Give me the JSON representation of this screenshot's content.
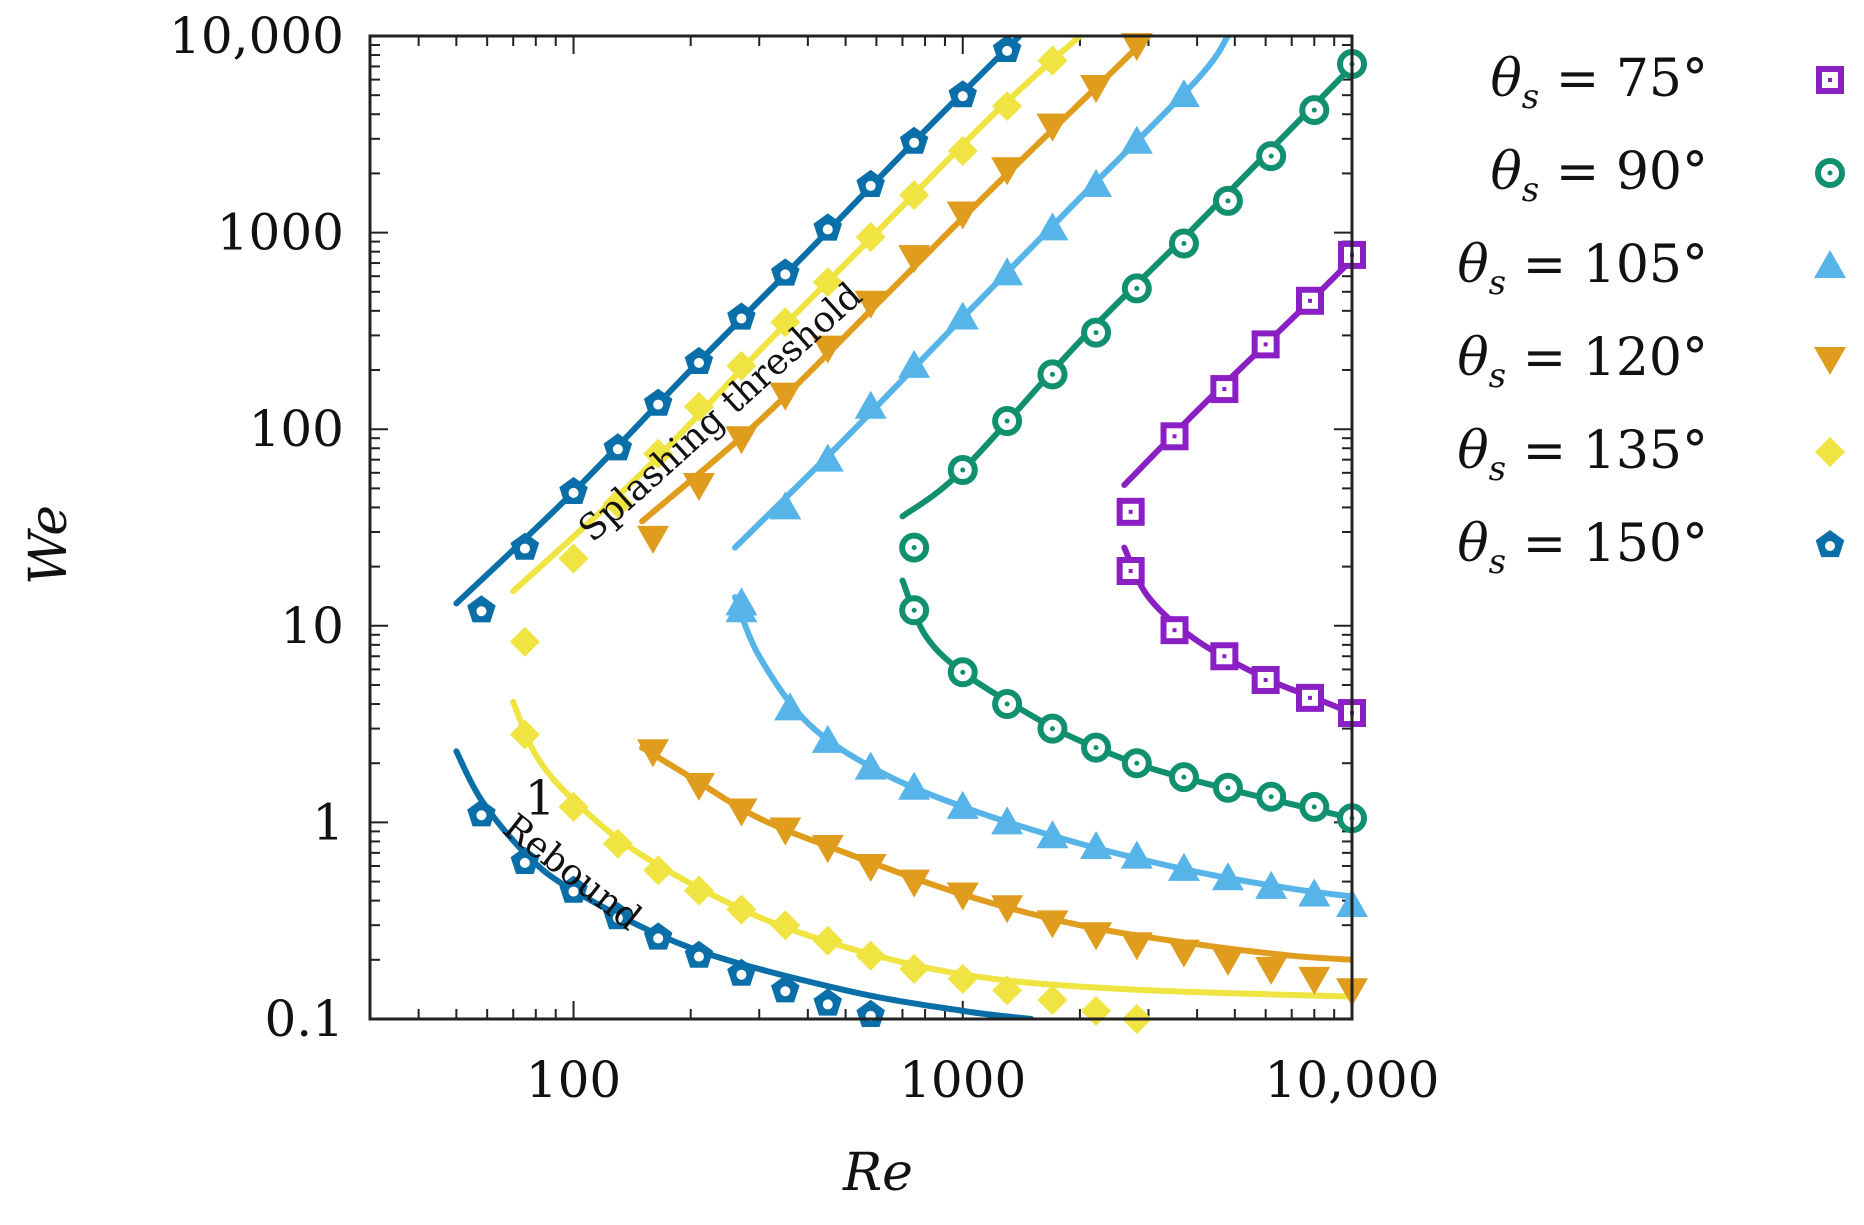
{
  "chart_data": {
    "type": "scatter",
    "title": "",
    "xlabel": "Re",
    "ylabel": "We",
    "xscale": "log",
    "yscale": "log",
    "xlim": [
      30,
      10000
    ],
    "ylim": [
      0.1,
      10000
    ],
    "grid": false,
    "legend_position": "right",
    "x_ticks": [
      {
        "value": 100,
        "label": "100"
      },
      {
        "value": 1000,
        "label": "1000"
      },
      {
        "value": 10000,
        "label": "10,000"
      }
    ],
    "y_ticks": [
      {
        "value": 0.1,
        "label": "0.1"
      },
      {
        "value": 1,
        "label": "1"
      },
      {
        "value": 10,
        "label": "10"
      },
      {
        "value": 100,
        "label": "100"
      },
      {
        "value": 1000,
        "label": "1000"
      },
      {
        "value": 10000,
        "label": "10,000"
      }
    ],
    "annotations": [
      {
        "text": "Splashing threshold",
        "x": 250,
        "y": 110,
        "rotation_deg": -42
      },
      {
        "text": "Rebound",
        "x": 95,
        "y": 0.5,
        "rotation_deg": 38
      },
      {
        "text": "1",
        "x": 82,
        "y": 1.1,
        "rotation_deg": 0
      }
    ],
    "series": [
      {
        "name": "θs = 75°",
        "legend_theta": "75",
        "color": "#8a1fc4",
        "marker": "square",
        "points_upper": [
          [
            2700,
            38
          ],
          [
            3500,
            92
          ],
          [
            4700,
            160
          ],
          [
            6000,
            270
          ],
          [
            7800,
            450
          ],
          [
            10000,
            770
          ]
        ],
        "points_lower": [
          [
            2700,
            19
          ],
          [
            3500,
            9.5
          ],
          [
            4700,
            7
          ],
          [
            6000,
            5.3
          ],
          [
            7800,
            4.3
          ],
          [
            10000,
            3.6
          ]
        ],
        "fit_upper": [
          [
            2600,
            52
          ],
          [
            4000,
            124
          ],
          [
            6000,
            270
          ],
          [
            8000,
            470
          ],
          [
            10000,
            730
          ]
        ],
        "fit_lower": [
          [
            2600,
            25
          ],
          [
            3000,
            14
          ],
          [
            4000,
            8.4
          ],
          [
            6000,
            5.4
          ],
          [
            8000,
            4.3
          ],
          [
            10000,
            3.6
          ]
        ]
      },
      {
        "name": "θs = 90°",
        "legend_theta": "90",
        "color": "#119070",
        "marker": "circle",
        "points_upper": [
          [
            750,
            25
          ],
          [
            1000,
            62
          ],
          [
            1300,
            110
          ],
          [
            1700,
            190
          ],
          [
            2200,
            310
          ],
          [
            2800,
            520
          ],
          [
            3700,
            880
          ],
          [
            4800,
            1450
          ],
          [
            6200,
            2450
          ],
          [
            8000,
            4200
          ],
          [
            10000,
            7200
          ]
        ],
        "points_lower": [
          [
            750,
            12
          ],
          [
            1000,
            5.8
          ],
          [
            1300,
            4
          ],
          [
            1700,
            3
          ],
          [
            2200,
            2.4
          ],
          [
            2800,
            2
          ],
          [
            3700,
            1.7
          ],
          [
            4800,
            1.5
          ],
          [
            6200,
            1.35
          ],
          [
            8000,
            1.2
          ],
          [
            10000,
            1.05
          ]
        ],
        "fit_upper": [
          [
            700,
            36
          ],
          [
            1000,
            62
          ],
          [
            2000,
            280
          ],
          [
            4000,
            1100
          ],
          [
            7000,
            3400
          ],
          [
            10000,
            7000
          ]
        ],
        "fit_lower": [
          [
            700,
            17
          ],
          [
            800,
            9
          ],
          [
            1000,
            5.8
          ],
          [
            1500,
            3.5
          ],
          [
            2000,
            2.6
          ],
          [
            3000,
            1.9
          ],
          [
            5000,
            1.45
          ],
          [
            10000,
            1.05
          ]
        ]
      },
      {
        "name": "θs = 105°",
        "legend_theta": "105",
        "color": "#56b4e9",
        "marker": "triangle-up",
        "points_upper": [
          [
            270,
            12
          ],
          [
            350,
            40
          ],
          [
            450,
            70
          ],
          [
            580,
            130
          ],
          [
            750,
            210
          ],
          [
            1000,
            370
          ],
          [
            1300,
            620
          ],
          [
            1700,
            1050
          ],
          [
            2200,
            1750
          ],
          [
            2800,
            2900
          ],
          [
            3700,
            5000
          ]
        ],
        "points_lower": [
          [
            270,
            13
          ],
          [
            360,
            3.8
          ],
          [
            450,
            2.6
          ],
          [
            580,
            1.9
          ],
          [
            750,
            1.5
          ],
          [
            1000,
            1.2
          ],
          [
            1300,
            1
          ],
          [
            1700,
            0.85
          ],
          [
            2200,
            0.75
          ],
          [
            2800,
            0.67
          ],
          [
            3700,
            0.58
          ],
          [
            4800,
            0.52
          ],
          [
            6200,
            0.47
          ],
          [
            8000,
            0.43
          ],
          [
            10000,
            0.38
          ]
        ],
        "fit_upper": [
          [
            260,
            25
          ],
          [
            500,
            90
          ],
          [
            1000,
            370
          ],
          [
            2000,
            1500
          ],
          [
            4000,
            6000
          ],
          [
            4800,
            10000
          ]
        ],
        "fit_lower": [
          [
            260,
            14
          ],
          [
            300,
            7
          ],
          [
            400,
            3.2
          ],
          [
            600,
            1.85
          ],
          [
            1000,
            1.2
          ],
          [
            2000,
            0.78
          ],
          [
            4000,
            0.56
          ],
          [
            7000,
            0.46
          ],
          [
            10000,
            0.42
          ]
        ]
      },
      {
        "name": "θs = 120°",
        "legend_theta": "120",
        "color": "#e09c1c",
        "marker": "triangle-down",
        "points_upper": [
          [
            160,
            28
          ],
          [
            210,
            52
          ],
          [
            270,
            90
          ],
          [
            350,
            150
          ],
          [
            450,
            260
          ],
          [
            580,
            440
          ],
          [
            750,
            750
          ],
          [
            1000,
            1250
          ],
          [
            1300,
            2100
          ],
          [
            1700,
            3500
          ],
          [
            2200,
            5500
          ],
          [
            2800,
            9000
          ]
        ],
        "points_lower": [
          [
            160,
            2.3
          ],
          [
            210,
            1.55
          ],
          [
            270,
            1.15
          ],
          [
            350,
            0.92
          ],
          [
            450,
            0.75
          ],
          [
            580,
            0.6
          ],
          [
            750,
            0.5
          ],
          [
            1000,
            0.43
          ],
          [
            1300,
            0.37
          ],
          [
            1700,
            0.31
          ],
          [
            2200,
            0.27
          ],
          [
            2800,
            0.24
          ],
          [
            3700,
            0.22
          ],
          [
            4800,
            0.2
          ],
          [
            6200,
            0.18
          ],
          [
            8000,
            0.16
          ],
          [
            10000,
            0.14
          ]
        ],
        "fit_upper": [
          [
            150,
            34
          ],
          [
            300,
            110
          ],
          [
            600,
            430
          ],
          [
            1200,
            1700
          ],
          [
            2500,
            7000
          ],
          [
            3000,
            10000
          ]
        ],
        "fit_lower": [
          [
            150,
            2.4
          ],
          [
            200,
            1.7
          ],
          [
            300,
            1.05
          ],
          [
            500,
            0.7
          ],
          [
            1000,
            0.43
          ],
          [
            2000,
            0.3
          ],
          [
            4000,
            0.24
          ],
          [
            7000,
            0.21
          ],
          [
            10000,
            0.2
          ]
        ]
      },
      {
        "name": "θs = 135°",
        "legend_theta": "135",
        "color": "#f0e442",
        "marker": "diamond",
        "points_upper": [
          [
            75,
            8.3
          ],
          [
            100,
            22
          ],
          [
            130,
            42
          ],
          [
            165,
            75
          ],
          [
            210,
            130
          ],
          [
            270,
            210
          ],
          [
            350,
            350
          ],
          [
            450,
            560
          ],
          [
            580,
            950
          ],
          [
            750,
            1550
          ],
          [
            1000,
            2600
          ],
          [
            1300,
            4400
          ],
          [
            1700,
            7500
          ]
        ],
        "points_lower": [
          [
            75,
            2.8
          ],
          [
            100,
            1.2
          ],
          [
            130,
            0.78
          ],
          [
            165,
            0.57
          ],
          [
            210,
            0.45
          ],
          [
            270,
            0.36
          ],
          [
            350,
            0.3
          ],
          [
            450,
            0.25
          ],
          [
            580,
            0.21
          ],
          [
            750,
            0.18
          ],
          [
            1000,
            0.16
          ],
          [
            1300,
            0.14
          ],
          [
            1700,
            0.125
          ],
          [
            2200,
            0.11
          ],
          [
            2800,
            0.1
          ]
        ],
        "fit_upper": [
          [
            70,
            15
          ],
          [
            150,
            60
          ],
          [
            300,
            250
          ],
          [
            600,
            1000
          ],
          [
            1200,
            4000
          ],
          [
            2000,
            10000
          ]
        ],
        "fit_lower": [
          [
            70,
            4.1
          ],
          [
            80,
            2.2
          ],
          [
            100,
            1.3
          ],
          [
            150,
            0.68
          ],
          [
            300,
            0.33
          ],
          [
            600,
            0.21
          ],
          [
            1200,
            0.16
          ],
          [
            3000,
            0.14
          ],
          [
            10000,
            0.13
          ]
        ]
      },
      {
        "name": "θs = 150°",
        "legend_theta": "150",
        "color": "#0a6ea8",
        "marker": "pentagon",
        "points_upper": [
          [
            58,
            12
          ],
          [
            75,
            25
          ],
          [
            100,
            48
          ],
          [
            130,
            80
          ],
          [
            165,
            135
          ],
          [
            210,
            220
          ],
          [
            270,
            370
          ],
          [
            350,
            620
          ],
          [
            450,
            1050
          ],
          [
            580,
            1750
          ],
          [
            750,
            2900
          ],
          [
            1000,
            5000
          ],
          [
            1300,
            8500
          ]
        ],
        "points_lower": [
          [
            58,
            1.1
          ],
          [
            75,
            0.63
          ],
          [
            100,
            0.45
          ],
          [
            130,
            0.33
          ],
          [
            165,
            0.26
          ],
          [
            210,
            0.21
          ],
          [
            270,
            0.17
          ],
          [
            350,
            0.14
          ],
          [
            450,
            0.12
          ],
          [
            580,
            0.105
          ]
        ],
        "fit_upper": [
          [
            50,
            13
          ],
          [
            100,
            48
          ],
          [
            200,
            200
          ],
          [
            400,
            800
          ],
          [
            800,
            3300
          ],
          [
            1400,
            10000
          ]
        ],
        "fit_lower": [
          [
            50,
            2.3
          ],
          [
            58,
            1.3
          ],
          [
            75,
            0.7
          ],
          [
            100,
            0.45
          ],
          [
            200,
            0.23
          ],
          [
            500,
            0.14
          ],
          [
            1000,
            0.11
          ],
          [
            1500,
            0.1
          ]
        ]
      }
    ]
  }
}
